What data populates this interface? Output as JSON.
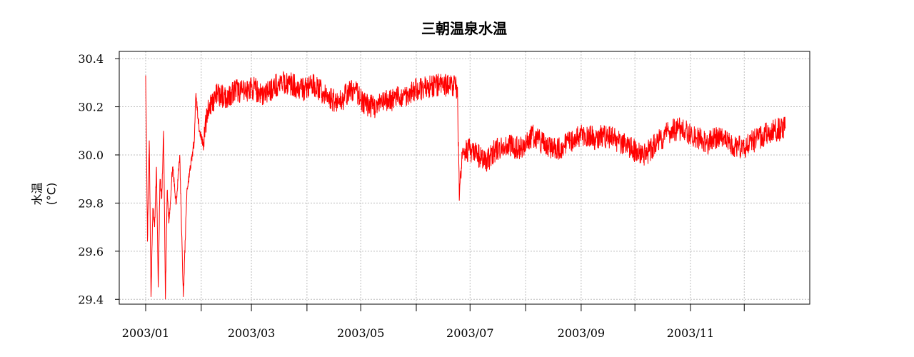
{
  "chart_data": {
    "type": "line",
    "title": "三朝温泉水温",
    "ylabel": "水温(°C)",
    "xlabel": "",
    "x_range": [
      "2003/01/01",
      "2003/12/24"
    ],
    "ylim": [
      29.38,
      30.43
    ],
    "yticks": [
      29.4,
      29.6,
      29.8,
      30.0,
      30.2,
      30.4
    ],
    "ytick_labels": [
      "29.4",
      "29.6",
      "29.8",
      "30.0",
      "30.2",
      "30.4"
    ],
    "xticks": [
      "2003/01/01",
      "2003/02/01",
      "2003/03/01",
      "2003/04/01",
      "2003/05/01",
      "2003/06/01",
      "2003/07/01",
      "2003/08/01",
      "2003/09/01",
      "2003/10/01",
      "2003/11/01",
      "2003/12/01"
    ],
    "xtick_labels": [
      "2003/01",
      "2003/03",
      "2003/05",
      "2003/07",
      "2003/09",
      "2003/11"
    ],
    "grid": true,
    "series": [
      {
        "color": "#ff0000",
        "points": [
          [
            "2003/01/01",
            30.33
          ],
          [
            "2003/01/02",
            29.64
          ],
          [
            "2003/01/03",
            30.06
          ],
          [
            "2003/01/04",
            29.41
          ],
          [
            "2003/01/05",
            29.78
          ],
          [
            "2003/01/06",
            29.7
          ],
          [
            "2003/01/07",
            29.95
          ],
          [
            "2003/01/08",
            29.45
          ],
          [
            "2003/01/09",
            29.9
          ],
          [
            "2003/01/10",
            29.82
          ],
          [
            "2003/01/11",
            30.1
          ],
          [
            "2003/01/12",
            29.4
          ],
          [
            "2003/01/13",
            29.85
          ],
          [
            "2003/01/14",
            29.72
          ],
          [
            "2003/01/16",
            29.95
          ],
          [
            "2003/01/18",
            29.8
          ],
          [
            "2003/01/20",
            30.0
          ],
          [
            "2003/01/22",
            29.41
          ],
          [
            "2003/01/24",
            29.85
          ],
          [
            "2003/01/26",
            29.95
          ],
          [
            "2003/01/28",
            30.05
          ],
          [
            "2003/01/29",
            30.25
          ],
          [
            "2003/01/31",
            30.1
          ],
          [
            "2003/02/02",
            30.05
          ],
          [
            "2003/02/05",
            30.2
          ],
          [
            "2003/02/10",
            30.25
          ],
          [
            "2003/02/15",
            30.24
          ],
          [
            "2003/02/20",
            30.27
          ],
          [
            "2003/02/25",
            30.26
          ],
          [
            "2003/03/01",
            30.28
          ],
          [
            "2003/03/08",
            30.25
          ],
          [
            "2003/03/15",
            30.29
          ],
          [
            "2003/03/22",
            30.3
          ],
          [
            "2003/03/29",
            30.27
          ],
          [
            "2003/04/05",
            30.29
          ],
          [
            "2003/04/12",
            30.24
          ],
          [
            "2003/04/19",
            30.22
          ],
          [
            "2003/04/26",
            30.27
          ],
          [
            "2003/04/30",
            30.25
          ],
          [
            "2003/05/03",
            30.21
          ],
          [
            "2003/05/10",
            30.2
          ],
          [
            "2003/05/17",
            30.23
          ],
          [
            "2003/05/24",
            30.24
          ],
          [
            "2003/05/31",
            30.27
          ],
          [
            "2003/06/07",
            30.28
          ],
          [
            "2003/06/14",
            30.29
          ],
          [
            "2003/06/21",
            30.29
          ],
          [
            "2003/06/24",
            30.28
          ],
          [
            "2003/06/25",
            29.81
          ],
          [
            "2003/06/27",
            30.03
          ],
          [
            "2003/07/05",
            30.0
          ],
          [
            "2003/07/10",
            29.97
          ],
          [
            "2003/07/15",
            30.02
          ],
          [
            "2003/07/22",
            30.04
          ],
          [
            "2003/07/29",
            30.03
          ],
          [
            "2003/08/05",
            30.08
          ],
          [
            "2003/08/12",
            30.04
          ],
          [
            "2003/08/19",
            30.02
          ],
          [
            "2003/08/26",
            30.06
          ],
          [
            "2003/09/02",
            30.08
          ],
          [
            "2003/09/09",
            30.07
          ],
          [
            "2003/09/16",
            30.08
          ],
          [
            "2003/09/23",
            30.05
          ],
          [
            "2003/09/30",
            30.02
          ],
          [
            "2003/10/07",
            30.0
          ],
          [
            "2003/10/14",
            30.06
          ],
          [
            "2003/10/21",
            30.1
          ],
          [
            "2003/10/28",
            30.11
          ],
          [
            "2003/11/04",
            30.07
          ],
          [
            "2003/11/11",
            30.05
          ],
          [
            "2003/11/18",
            30.08
          ],
          [
            "2003/11/25",
            30.03
          ],
          [
            "2003/12/02",
            30.04
          ],
          [
            "2003/12/09",
            30.07
          ],
          [
            "2003/12/16",
            30.1
          ],
          [
            "2003/12/24",
            30.11
          ]
        ]
      }
    ]
  }
}
